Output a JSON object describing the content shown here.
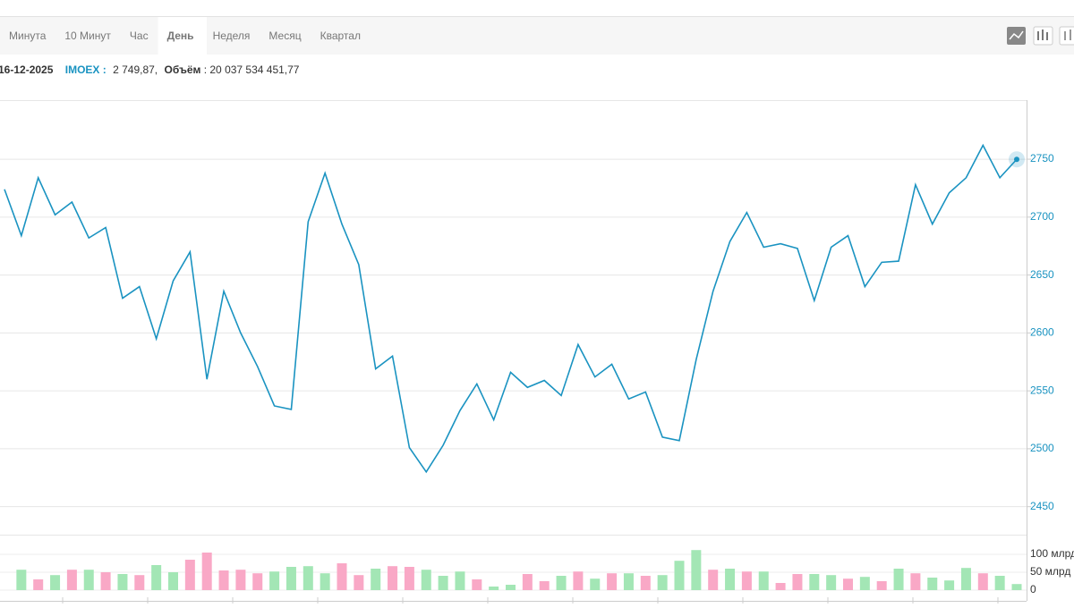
{
  "tabs": [
    "Минута",
    "10 Минут",
    "Час",
    "День",
    "Неделя",
    "Месяц",
    "Квартал"
  ],
  "active_tab": 3,
  "info": {
    "date": "16-12-2025",
    "ticker": "IMOEX :",
    "price": "2 749,87,",
    "volume_label": "Объём",
    "volume": ": 20 037 534 451,77"
  },
  "chart_data": [
    {
      "type": "line",
      "color": "#1a93c1",
      "categories": [
        null,
        null,
        null,
        null,
        null,
        null,
        null,
        null,
        null,
        null,
        null,
        null,
        null,
        null,
        null,
        null,
        null,
        null,
        null,
        null,
        null,
        null,
        null,
        null,
        null,
        null,
        null,
        null,
        null,
        null,
        null,
        null,
        null,
        null,
        null,
        null,
        null,
        null,
        null,
        null,
        null,
        null,
        null,
        null,
        null,
        null,
        null,
        null,
        null,
        null,
        null,
        null,
        null,
        null,
        null,
        null,
        null,
        null,
        null,
        null,
        null
      ],
      "values": [
        2724,
        2684,
        2734,
        2702,
        2713,
        2682,
        2691,
        2630,
        2640,
        2595,
        2645,
        2670,
        2560,
        2636,
        2600,
        2571,
        2537,
        2534,
        2696,
        2738,
        2694,
        2659,
        2569,
        2580,
        2501,
        2480,
        2503,
        2533,
        2556,
        2525,
        2566,
        2553,
        2559,
        2546,
        2590,
        2562,
        2573,
        2543,
        2549,
        2510,
        2507,
        2577,
        2636,
        2679,
        2704,
        2674,
        2677,
        2673,
        2628,
        2674,
        2684,
        2640,
        2661,
        2662,
        2728,
        2694,
        2721,
        2734,
        2762,
        2734,
        2749.87
      ],
      "ylim": [
        2432,
        2801
      ],
      "yticks": [
        2450,
        2500,
        2550,
        2600,
        2650,
        2700,
        2750
      ],
      "grid": true
    },
    {
      "type": "bar",
      "categories": [
        null,
        null,
        null,
        null,
        null,
        null,
        null,
        null,
        null,
        null,
        null,
        null,
        null,
        null,
        null,
        null,
        null,
        null,
        null,
        null,
        null,
        null,
        null,
        null,
        null,
        null,
        null,
        null,
        null,
        null,
        null,
        null,
        null,
        null,
        null,
        null,
        null,
        null,
        null,
        null,
        null,
        null,
        null,
        null,
        null,
        null,
        null,
        null,
        null,
        null,
        null,
        null,
        null,
        null,
        null,
        null,
        null,
        null,
        null,
        null
      ],
      "values": [
        57,
        30,
        42,
        57,
        57,
        50,
        45,
        42,
        70,
        50,
        85,
        105,
        55,
        57,
        47,
        52,
        65,
        67,
        47,
        75,
        42,
        60,
        67,
        65,
        57,
        40,
        52,
        30,
        10,
        15,
        45,
        25,
        40,
        52,
        32,
        47,
        47,
        40,
        42,
        82,
        112,
        57,
        60,
        52,
        52,
        20,
        45,
        45,
        42,
        32,
        37,
        25,
        60,
        47,
        35,
        27,
        62,
        47,
        40,
        17
      ],
      "colors": [
        "#a3e6b5",
        "#f9a8c6",
        "#a3e6b5",
        "#f9a8c6",
        "#a3e6b5",
        "#f9a8c6",
        "#a3e6b5",
        "#f9a8c6",
        "#a3e6b5",
        "#a3e6b5",
        "#f9a8c6",
        "#f9a8c6",
        "#f9a8c6",
        "#f9a8c6",
        "#f9a8c6",
        "#a3e6b5",
        "#a3e6b5",
        "#a3e6b5",
        "#a3e6b5",
        "#f9a8c6",
        "#f9a8c6",
        "#a3e6b5",
        "#f9a8c6",
        "#f9a8c6",
        "#a3e6b5",
        "#a3e6b5",
        "#a3e6b5",
        "#f9a8c6",
        "#a3e6b5",
        "#a3e6b5",
        "#f9a8c6",
        "#f9a8c6",
        "#a3e6b5",
        "#f9a8c6",
        "#a3e6b5",
        "#f9a8c6",
        "#a3e6b5",
        "#f9a8c6",
        "#a3e6b5",
        "#a3e6b5",
        "#a3e6b5",
        "#f9a8c6",
        "#a3e6b5",
        "#f9a8c6",
        "#a3e6b5",
        "#f9a8c6",
        "#f9a8c6",
        "#a3e6b5",
        "#a3e6b5",
        "#f9a8c6",
        "#a3e6b5",
        "#f9a8c6",
        "#a3e6b5",
        "#f9a8c6",
        "#a3e6b5",
        "#a3e6b5",
        "#a3e6b5",
        "#f9a8c6",
        "#a3e6b5",
        "#a3e6b5"
      ],
      "ylim": [
        0,
        155
      ],
      "yticks": [
        {
          "value": 100,
          "label": "100 млрд"
        },
        {
          "value": 50,
          "label": "50 млрд"
        },
        0
      ]
    }
  ]
}
